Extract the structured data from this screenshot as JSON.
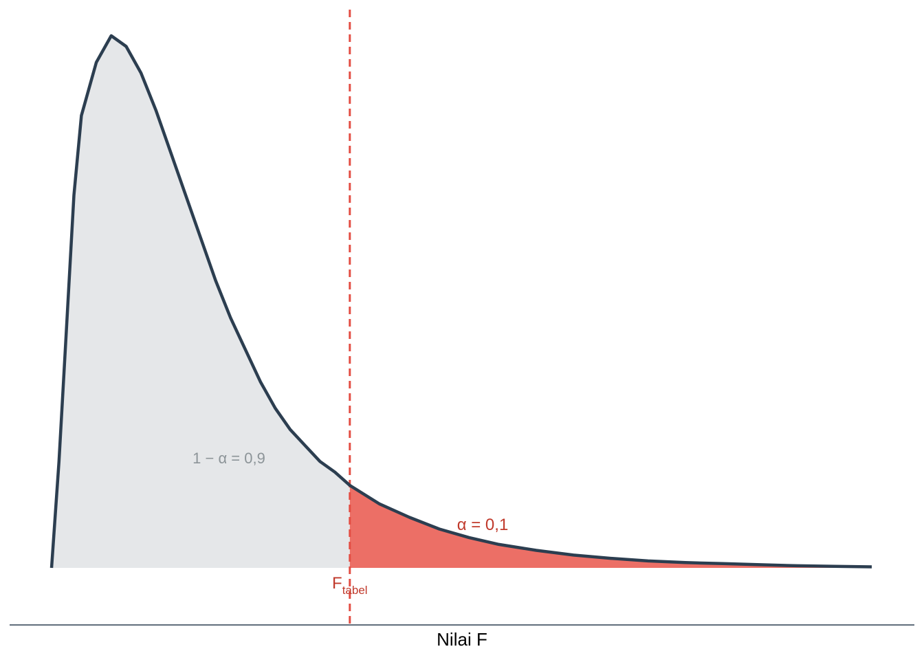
{
  "chart_data": {
    "type": "area",
    "distribution": "F",
    "xlabel": "Nilai F",
    "critical_label": "F",
    "critical_label_subscript": "tabel",
    "alpha": 0.1,
    "confidence": 0.9,
    "acceptance_label": "1 − α = 0,9",
    "rejection_label": "α = 0,1",
    "x_range": [
      0,
      5.5
    ],
    "critical_value": 2.0,
    "curve": [
      [
        0.0,
        0.0
      ],
      [
        0.05,
        0.2
      ],
      [
        0.1,
        0.45
      ],
      [
        0.15,
        0.7
      ],
      [
        0.2,
        0.85
      ],
      [
        0.3,
        0.95
      ],
      [
        0.4,
        1.0
      ],
      [
        0.5,
        0.98
      ],
      [
        0.6,
        0.93
      ],
      [
        0.7,
        0.86
      ],
      [
        0.8,
        0.78
      ],
      [
        0.9,
        0.7
      ],
      [
        1.0,
        0.62
      ],
      [
        1.1,
        0.54
      ],
      [
        1.2,
        0.47
      ],
      [
        1.3,
        0.41
      ],
      [
        1.4,
        0.35
      ],
      [
        1.5,
        0.3
      ],
      [
        1.6,
        0.26
      ],
      [
        1.7,
        0.23
      ],
      [
        1.8,
        0.2
      ],
      [
        1.9,
        0.18
      ],
      [
        2.0,
        0.155
      ],
      [
        2.2,
        0.12
      ],
      [
        2.4,
        0.095
      ],
      [
        2.6,
        0.073
      ],
      [
        2.8,
        0.057
      ],
      [
        3.0,
        0.044
      ],
      [
        3.25,
        0.033
      ],
      [
        3.5,
        0.024
      ],
      [
        3.75,
        0.018
      ],
      [
        4.0,
        0.013
      ],
      [
        4.25,
        0.01
      ],
      [
        4.5,
        0.008
      ],
      [
        4.75,
        0.006
      ],
      [
        5.0,
        0.004
      ],
      [
        5.25,
        0.003
      ],
      [
        5.5,
        0.002
      ]
    ],
    "grid": false,
    "colors": {
      "curve": "#2c3e50",
      "acceptance_fill": "#e5e7e9",
      "rejection_fill": "#ec6f66",
      "critical_line": "#e34d43",
      "acceptance_text": "#8c9498",
      "rejection_text": "#c0392b",
      "axis": "#2c3e50"
    }
  }
}
